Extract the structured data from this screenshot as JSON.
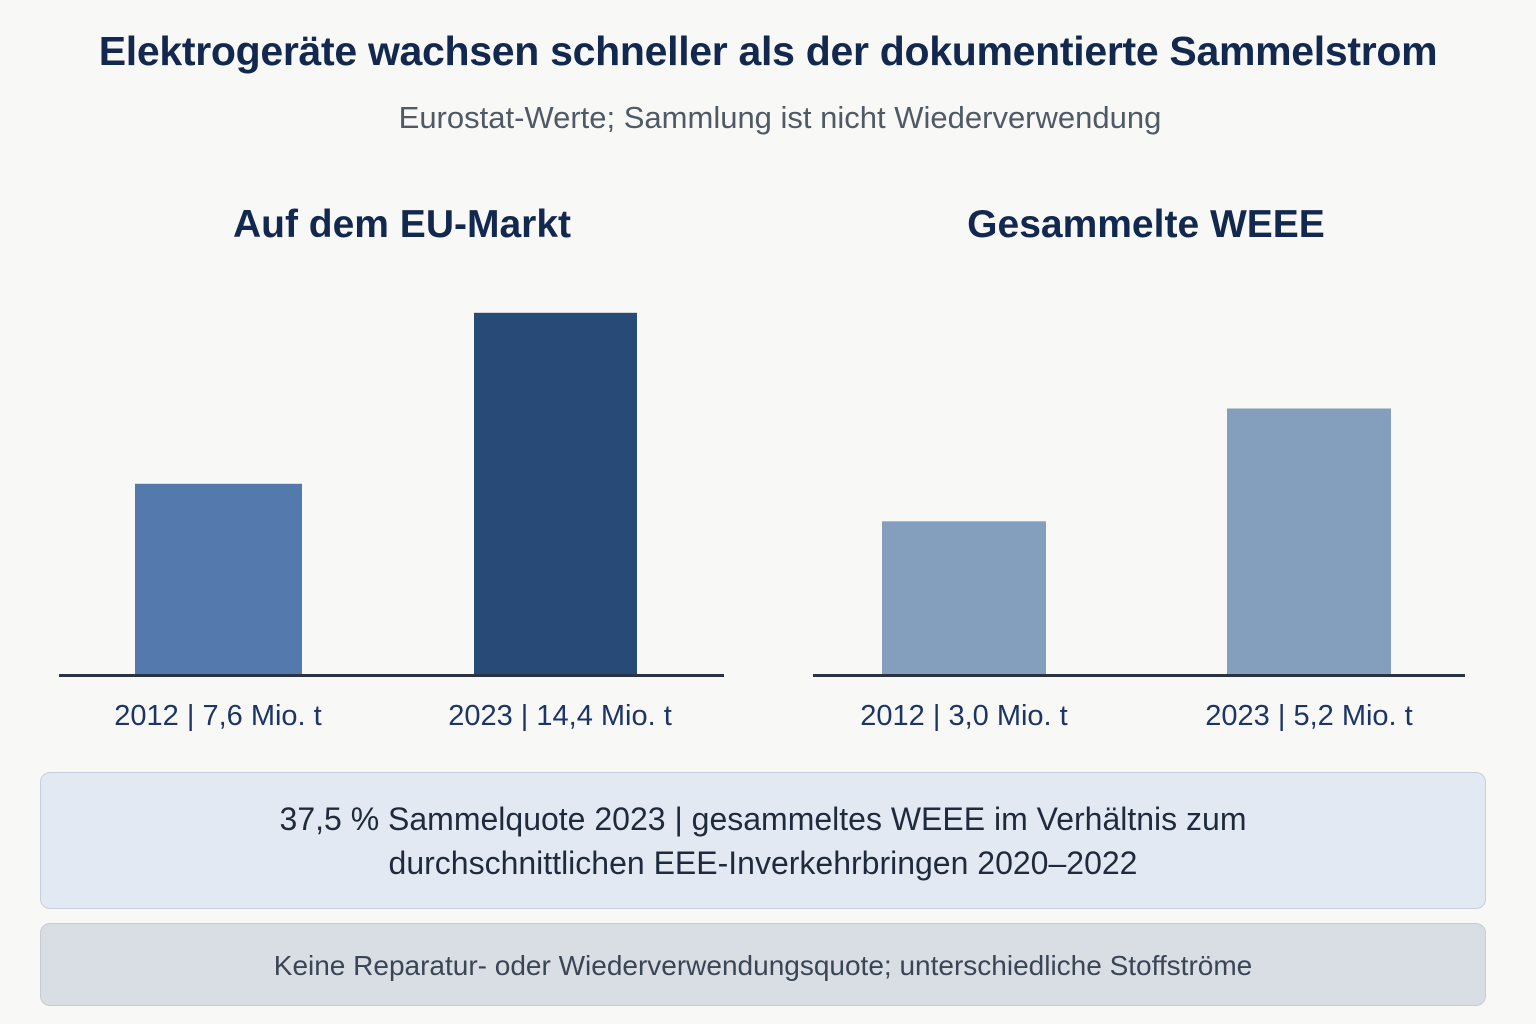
{
  "header": {
    "title": "Elektrogeräte wachsen schneller als der dokumentierte Sammelstrom",
    "subtitle": "Eurostat-Werte; Sammlung ist nicht Wiederverwendung"
  },
  "chart_data": [
    {
      "type": "bar",
      "title": "Auf dem EU-Markt",
      "unit": "Mio. t",
      "categories": [
        "2012",
        "2023"
      ],
      "values": [
        7.6,
        14.4
      ],
      "tick_labels": [
        "2012 | 7,6 Mio. t",
        "2023 | 14,4 Mio. t"
      ],
      "bar_colors": [
        "#5479ad",
        "#284a77"
      ],
      "ylim": [
        0,
        16.3
      ],
      "grid": false
    },
    {
      "type": "bar",
      "title": "Gesammelte WEEE",
      "unit": "Mio. t",
      "categories": [
        "2012",
        "2023"
      ],
      "values": [
        3.0,
        5.2
      ],
      "tick_labels": [
        "2012 | 3,0 Mio. t",
        "2023 | 5,2 Mio. t"
      ],
      "bar_colors": [
        "#839fbd",
        "#839fbd"
      ],
      "ylim": [
        0,
        8.0
      ],
      "grid": false
    }
  ],
  "notes": {
    "primary_line1": "37,5 % Sammelquote 2023 | gesammeltes WEEE im Verhältnis zum",
    "primary_line2": "durchschnittlichen EEE-Inverkehrbringen 2020–2022",
    "secondary": "Keine Reparatur- oder Wiederverwendungsquote; unterschiedliche Stoffströme"
  },
  "colors": {
    "title": "#13284f",
    "axis": "#2b3240",
    "background": "#f8f8f6"
  }
}
